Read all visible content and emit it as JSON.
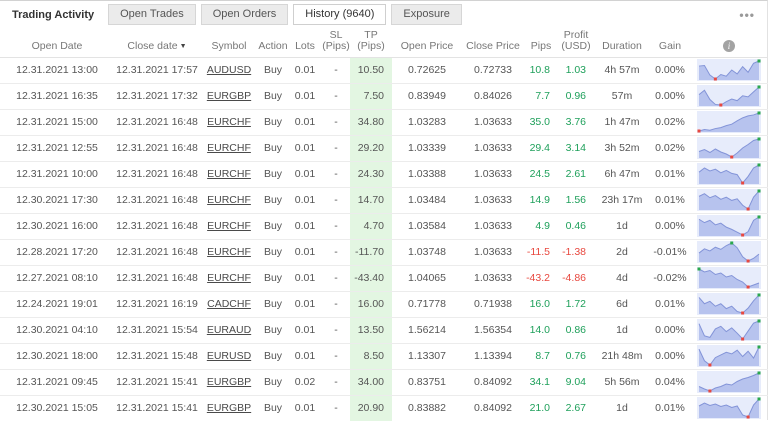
{
  "tabs": {
    "main": "Trading Activity",
    "items": [
      {
        "label": "Open Trades",
        "active": false
      },
      {
        "label": "Open Orders",
        "active": false
      },
      {
        "label": "History (9640)",
        "active": true
      },
      {
        "label": "Exposure",
        "active": false
      }
    ],
    "menu_icon": "•••"
  },
  "table": {
    "columns": {
      "open_date": "Open Date",
      "close_date": "Close date",
      "symbol": "Symbol",
      "action": "Action",
      "lots": "Lots",
      "sl": "SL\n(Pips)",
      "tp": "TP\n(Pips)",
      "open_price": "Open Price",
      "close_price": "Close Price",
      "pips": "Pips",
      "profit": "Profit\n(USD)",
      "duration": "Duration",
      "gain": "Gain"
    },
    "sort_indicator": "▼",
    "info_icon": "i",
    "rows": [
      {
        "open_date": "12.31.2021 13:00",
        "close_date": "12.31.2021 17:57",
        "symbol": "AUDUSD",
        "action": "Buy",
        "lots": "0.01",
        "sl": "-",
        "tp": "10.50",
        "open_price": "0.72625",
        "close_price": "0.72733",
        "pips": "10.8",
        "profit": "1.03",
        "duration": "4h 57m",
        "gain": "0.00%",
        "positive": true,
        "spark": [
          60,
          62,
          28,
          14,
          30,
          24,
          46,
          32,
          58,
          38,
          70,
          78
        ]
      },
      {
        "open_date": "12.31.2021 16:35",
        "close_date": "12.31.2021 17:32",
        "symbol": "EURGBP",
        "action": "Buy",
        "lots": "0.01",
        "sl": "-",
        "tp": "7.50",
        "open_price": "0.83949",
        "close_price": "0.84026",
        "pips": "7.7",
        "profit": "0.96",
        "duration": "57m",
        "gain": "0.00%",
        "positive": true,
        "spark": [
          52,
          68,
          34,
          16,
          14,
          26,
          36,
          30,
          48,
          44,
          62,
          80
        ]
      },
      {
        "open_date": "12.31.2021 15:00",
        "close_date": "12.31.2021 16:48",
        "symbol": "EURCHF",
        "action": "Buy",
        "lots": "0.01",
        "sl": "-",
        "tp": "34.80",
        "open_price": "1.03283",
        "close_price": "1.03633",
        "pips": "35.0",
        "profit": "3.76",
        "duration": "1h 47m",
        "gain": "0.02%",
        "positive": true,
        "spark": [
          6,
          12,
          9,
          16,
          20,
          28,
          34,
          48,
          60,
          68,
          72,
          80
        ]
      },
      {
        "open_date": "12.31.2021 12:55",
        "close_date": "12.31.2021 16:48",
        "symbol": "EURCHF",
        "action": "Buy",
        "lots": "0.01",
        "sl": "-",
        "tp": "29.20",
        "open_price": "1.03339",
        "close_price": "1.03633",
        "pips": "29.4",
        "profit": "3.14",
        "duration": "3h 52m",
        "gain": "0.02%",
        "positive": true,
        "spark": [
          32,
          40,
          28,
          42,
          30,
          22,
          10,
          26,
          46,
          60,
          76,
          82
        ]
      },
      {
        "open_date": "12.31.2021 10:00",
        "close_date": "12.31.2021 16:48",
        "symbol": "EURCHF",
        "action": "Buy",
        "lots": "0.01",
        "sl": "-",
        "tp": "24.30",
        "open_price": "1.03388",
        "close_price": "1.03633",
        "pips": "24.5",
        "profit": "2.61",
        "duration": "6h 47m",
        "gain": "0.01%",
        "positive": true,
        "spark": [
          48,
          62,
          52,
          58,
          46,
          54,
          44,
          40,
          12,
          34,
          62,
          72
        ]
      },
      {
        "open_date": "12.30.2021 17:30",
        "close_date": "12.31.2021 16:48",
        "symbol": "EURCHF",
        "action": "Buy",
        "lots": "0.01",
        "sl": "-",
        "tp": "14.70",
        "open_price": "1.03484",
        "close_price": "1.03633",
        "pips": "14.9",
        "profit": "1.56",
        "duration": "23h 17m",
        "gain": "0.01%",
        "positive": true,
        "spark": [
          55,
          65,
          50,
          58,
          44,
          52,
          40,
          46,
          22,
          8,
          52,
          75
        ]
      },
      {
        "open_date": "12.30.2021 16:00",
        "close_date": "12.31.2021 16:48",
        "symbol": "EURCHF",
        "action": "Buy",
        "lots": "0.01",
        "sl": "-",
        "tp": "4.70",
        "open_price": "1.03584",
        "close_price": "1.03633",
        "pips": "4.9",
        "profit": "0.46",
        "duration": "1d",
        "gain": "0.00%",
        "positive": true,
        "spark": [
          62,
          50,
          58,
          42,
          48,
          34,
          26,
          16,
          6,
          18,
          58,
          70
        ]
      },
      {
        "open_date": "12.28.2021 17:20",
        "close_date": "12.31.2021 16:48",
        "symbol": "EURCHF",
        "action": "Buy",
        "lots": "0.01",
        "sl": "-",
        "tp": "-11.70",
        "open_price": "1.03748",
        "close_price": "1.03633",
        "pips": "-11.5",
        "profit": "-1.38",
        "duration": "2d",
        "gain": "-0.01%",
        "positive": false,
        "spark": [
          38,
          54,
          46,
          60,
          52,
          66,
          76,
          58,
          24,
          8,
          18,
          34
        ]
      },
      {
        "open_date": "12.27.2021 08:10",
        "close_date": "12.31.2021 16:48",
        "symbol": "EURCHF",
        "action": "Buy",
        "lots": "0.01",
        "sl": "-",
        "tp": "-43.40",
        "open_price": "1.04065",
        "close_price": "1.03633",
        "pips": "-43.2",
        "profit": "-4.86",
        "duration": "4d",
        "gain": "-0.02%",
        "positive": false,
        "spark": [
          82,
          70,
          76,
          60,
          66,
          50,
          56,
          40,
          30,
          10,
          18,
          26
        ]
      },
      {
        "open_date": "12.24.2021 19:01",
        "close_date": "12.31.2021 16:19",
        "symbol": "CADCHF",
        "action": "Buy",
        "lots": "0.01",
        "sl": "-",
        "tp": "16.00",
        "open_price": "0.71778",
        "close_price": "0.71938",
        "pips": "16.0",
        "profit": "1.72",
        "duration": "6d",
        "gain": "0.01%",
        "positive": true,
        "spark": [
          72,
          46,
          56,
          36,
          46,
          26,
          36,
          14,
          8,
          28,
          58,
          82
        ]
      },
      {
        "open_date": "12.30.2021 04:10",
        "close_date": "12.31.2021 15:54",
        "symbol": "EURAUD",
        "action": "Buy",
        "lots": "0.01",
        "sl": "-",
        "tp": "13.50",
        "open_price": "1.56214",
        "close_price": "1.56354",
        "pips": "14.0",
        "profit": "0.86",
        "duration": "1d",
        "gain": "0.00%",
        "positive": true,
        "spark": [
          66,
          20,
          14,
          46,
          56,
          36,
          50,
          30,
          8,
          38,
          68,
          76
        ]
      },
      {
        "open_date": "12.30.2021 18:00",
        "close_date": "12.31.2021 15:48",
        "symbol": "EURUSD",
        "action": "Buy",
        "lots": "0.01",
        "sl": "-",
        "tp": "8.50",
        "open_price": "1.13307",
        "close_price": "1.13394",
        "pips": "8.7",
        "profit": "0.76",
        "duration": "21h 48m",
        "gain": "0.00%",
        "positive": true,
        "spark": [
          68,
          24,
          8,
          36,
          46,
          56,
          50,
          64,
          40,
          60,
          34,
          76
        ]
      },
      {
        "open_date": "12.31.2021 09:45",
        "close_date": "12.31.2021 15:41",
        "symbol": "EURGBP",
        "action": "Buy",
        "lots": "0.02",
        "sl": "-",
        "tp": "34.00",
        "open_price": "0.83751",
        "close_price": "0.84092",
        "pips": "34.1",
        "profit": "9.04",
        "duration": "5h 56m",
        "gain": "0.04%",
        "positive": true,
        "spark": [
          24,
          14,
          6,
          18,
          24,
          34,
          30,
          44,
          54,
          60,
          68,
          78
        ]
      },
      {
        "open_date": "12.30.2021 15:05",
        "close_date": "12.31.2021 15:41",
        "symbol": "EURGBP",
        "action": "Buy",
        "lots": "0.01",
        "sl": "-",
        "tp": "20.90",
        "open_price": "0.83882",
        "close_price": "0.84092",
        "pips": "21.0",
        "profit": "2.67",
        "duration": "1d",
        "gain": "0.01%",
        "positive": true,
        "spark": [
          50,
          62,
          52,
          58,
          48,
          54,
          44,
          50,
          14,
          6,
          54,
          78
        ]
      }
    ]
  },
  "colors": {
    "positive": "#1fa05b",
    "negative": "#e8483f",
    "tp_column_bg": "#e3f6e2",
    "spark_bg": "#e7ecfb",
    "spark_fill": "#b7c3ee",
    "spark_line": "#8394d8",
    "dot_high": "#2ba84d",
    "dot_low": "#e8483f"
  }
}
